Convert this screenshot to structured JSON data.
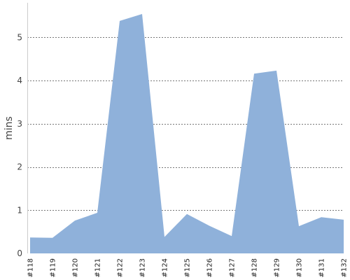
{
  "chart_data": {
    "type": "area",
    "categories": [
      "#118",
      "#119",
      "#120",
      "#121",
      "#122",
      "#123",
      "#124",
      "#125",
      "#126",
      "#127",
      "#128",
      "#129",
      "#130",
      "#131",
      "#132"
    ],
    "values": [
      0.37,
      0.36,
      0.76,
      0.94,
      5.38,
      5.54,
      0.38,
      0.91,
      0.64,
      0.4,
      4.16,
      4.23,
      0.63,
      0.84,
      0.78
    ],
    "title": "",
    "xlabel": "",
    "ylabel": "mins",
    "ylim": [
      0,
      5.8
    ],
    "yticks": [
      0,
      1,
      2,
      3,
      4,
      5
    ],
    "grid": true,
    "fill_color": "#8fb1da"
  }
}
